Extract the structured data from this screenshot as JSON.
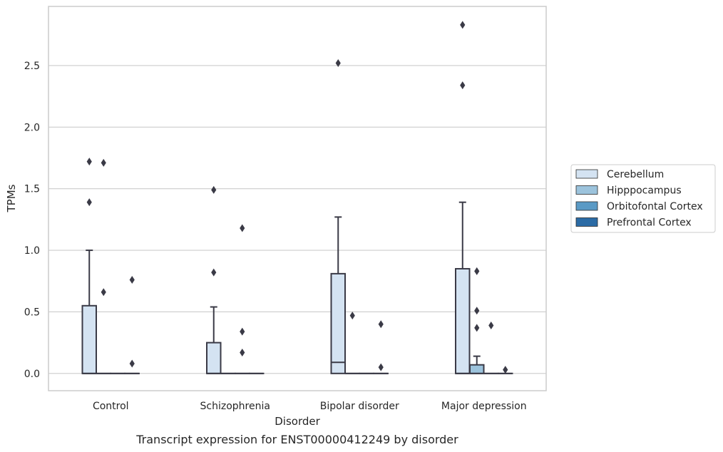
{
  "chart_data": {
    "type": "box",
    "title": "",
    "caption": "Transcript expression for ENST00000412249 by disorder",
    "xlabel": "Disorder",
    "ylabel": "TPMs",
    "ylim": [
      -0.14,
      2.98
    ],
    "yticks": [
      "0.0",
      "0.5",
      "1.0",
      "1.5",
      "2.0",
      "2.5"
    ],
    "ytick_values": [
      0,
      0.5,
      1.0,
      1.5,
      2.0,
      2.5
    ],
    "grid": "horizontal",
    "legend_placement": "right",
    "categories": [
      "Control",
      "Schizophrenia",
      "Bipolar disorder",
      "Major depression"
    ],
    "series": [
      {
        "name": "Cerebellum",
        "color": "#d4e3f2",
        "boxes": [
          {
            "q1": 0,
            "median": 0,
            "q3": 0.55,
            "whisker_low": 0,
            "whisker_high": 1.0,
            "outliers": [
              1.72,
              1.39
            ]
          },
          {
            "q1": 0,
            "median": 0,
            "q3": 0.25,
            "whisker_low": 0,
            "whisker_high": 0.54,
            "outliers": [
              1.49,
              0.82
            ]
          },
          {
            "q1": 0,
            "median": 0.09,
            "q3": 0.81,
            "whisker_low": 0,
            "whisker_high": 1.27,
            "outliers": [
              2.52
            ]
          },
          {
            "q1": 0,
            "median": 0,
            "q3": 0.85,
            "whisker_low": 0,
            "whisker_high": 1.39,
            "outliers": [
              2.83,
              2.34
            ]
          }
        ]
      },
      {
        "name": "Hipppocampus",
        "color": "#9cc3dc",
        "boxes": [
          {
            "q1": 0,
            "median": 0,
            "q3": 0,
            "whisker_low": 0,
            "whisker_high": 0,
            "outliers": [
              1.71,
              0.66
            ]
          },
          {
            "q1": 0,
            "median": 0,
            "q3": 0,
            "whisker_low": 0,
            "whisker_high": 0,
            "outliers": []
          },
          {
            "q1": 0,
            "median": 0,
            "q3": 0,
            "whisker_low": 0,
            "whisker_high": 0,
            "outliers": [
              0.47
            ]
          },
          {
            "q1": 0,
            "median": 0,
            "q3": 0.07,
            "whisker_low": 0,
            "whisker_high": 0.14,
            "outliers": [
              0.83,
              0.51,
              0.37
            ]
          }
        ]
      },
      {
        "name": "Orbitofontal Cortex",
        "color": "#5a9ac5",
        "boxes": [
          {
            "q1": 0,
            "median": 0,
            "q3": 0,
            "whisker_low": 0,
            "whisker_high": 0,
            "outliers": []
          },
          {
            "q1": 0,
            "median": 0,
            "q3": 0,
            "whisker_low": 0,
            "whisker_high": 0,
            "outliers": [
              1.18,
              0.34,
              0.17
            ]
          },
          {
            "q1": 0,
            "median": 0,
            "q3": 0,
            "whisker_low": 0,
            "whisker_high": 0,
            "outliers": []
          },
          {
            "q1": 0,
            "median": 0,
            "q3": 0,
            "whisker_low": 0,
            "whisker_high": 0,
            "outliers": [
              0.39
            ]
          }
        ]
      },
      {
        "name": "Prefrontal Cortex",
        "color": "#2b6ba5",
        "boxes": [
          {
            "q1": 0,
            "median": 0,
            "q3": 0,
            "whisker_low": 0,
            "whisker_high": 0,
            "outliers": [
              0.76,
              0.08
            ]
          },
          {
            "q1": 0,
            "median": 0,
            "q3": 0,
            "whisker_low": 0,
            "whisker_high": 0,
            "outliers": []
          },
          {
            "q1": 0,
            "median": 0,
            "q3": 0,
            "whisker_low": 0,
            "whisker_high": 0,
            "outliers": [
              0.4,
              0.05
            ]
          },
          {
            "q1": 0,
            "median": 0,
            "q3": 0,
            "whisker_low": 0,
            "whisker_high": 0,
            "outliers": [
              0.03
            ]
          }
        ]
      }
    ]
  }
}
